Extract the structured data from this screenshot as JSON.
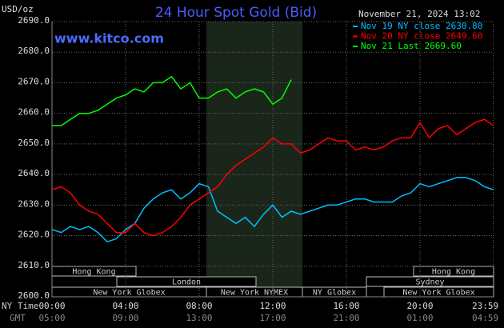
{
  "chart_data": {
    "type": "line",
    "title": "24 Hour Spot Gold (Bid)",
    "website": "www.kitco.com",
    "timestamp": "November 21, 2024 13:02",
    "y_label": "USD/oz",
    "x_label": "NY Time",
    "x2_label": "GMT",
    "x": [
      0,
      0.5,
      1,
      1.5,
      2,
      2.5,
      3,
      3.5,
      4,
      4.5,
      5,
      5.5,
      6,
      6.5,
      7,
      7.5,
      8,
      8.5,
      9,
      9.5,
      10,
      10.5,
      11,
      11.5,
      12,
      12.5,
      13,
      13.5,
      14,
      14.5,
      15,
      15.5,
      16,
      16.5,
      17,
      17.5,
      18,
      18.5,
      19,
      19.5,
      20,
      20.5,
      21,
      21.5,
      22,
      22.5,
      23,
      23.5,
      24
    ],
    "xlim": [
      0,
      24
    ],
    "xticks": [
      {
        "value": 0,
        "label": "00:00"
      },
      {
        "value": 4,
        "label": "04:00"
      },
      {
        "value": 8,
        "label": "08:00"
      },
      {
        "value": 12,
        "label": "12:00"
      },
      {
        "value": 16,
        "label": "16:00"
      },
      {
        "value": 20,
        "label": "20:00"
      },
      {
        "value": 23.983,
        "label": "23:59"
      }
    ],
    "x2ticks": [
      {
        "value": 0,
        "label": "05:00"
      },
      {
        "value": 4,
        "label": "09:00"
      },
      {
        "value": 8,
        "label": "13:00"
      },
      {
        "value": 12,
        "label": "17:00"
      },
      {
        "value": 16,
        "label": "21:00"
      },
      {
        "value": 20,
        "label": "01:00"
      },
      {
        "value": 23.983,
        "label": "04:59"
      }
    ],
    "ylim": [
      2600,
      2690
    ],
    "yticks": [
      {
        "value": 2600,
        "label": "2600.0"
      },
      {
        "value": 2610,
        "label": "2610.0"
      },
      {
        "value": 2620,
        "label": "2620.0"
      },
      {
        "value": 2630,
        "label": "2630.0"
      },
      {
        "value": 2640,
        "label": "2640.0"
      },
      {
        "value": 2650,
        "label": "2650.0"
      },
      {
        "value": 2660,
        "label": "2660.0"
      },
      {
        "value": 2670,
        "label": "2670.0"
      },
      {
        "value": 2680,
        "label": "2680.0"
      },
      {
        "value": 2690,
        "label": "2690.0"
      }
    ],
    "grid": true,
    "series": [
      {
        "name": "Nov 19 NY close 2630.80",
        "color": "#00bfff",
        "values": [
          2622,
          2621,
          2623,
          2622,
          2623,
          2621,
          2618,
          2619,
          2622,
          2624,
          2629,
          2632,
          2634,
          2635,
          2632,
          2634,
          2637,
          2636,
          2628,
          2626,
          2624,
          2626,
          2623,
          2627,
          2630,
          2626,
          2628,
          2627,
          2628,
          2629,
          2630,
          2630,
          2631,
          2632,
          2632,
          2631,
          2631,
          2631,
          2633,
          2634,
          2637,
          2636,
          2637,
          2638,
          2639,
          2639,
          2638,
          2636,
          2635
        ]
      },
      {
        "name": "Nov 20 NY close 2649.60",
        "color": "#ff0000",
        "values": [
          2635,
          2636,
          2634,
          2630,
          2628,
          2627,
          2624,
          2621,
          2621,
          2624,
          2621,
          2620,
          2621,
          2623,
          2626,
          2630,
          2632,
          2634,
          2636,
          2640,
          2643,
          2645,
          2647,
          2649,
          2652,
          2650,
          2650,
          2647,
          2648,
          2650,
          2652,
          2651,
          2651,
          2648,
          2649,
          2648,
          2649,
          2651,
          2652,
          2652,
          2657,
          2652,
          2655,
          2656,
          2653,
          2655,
          2657,
          2658,
          2656
        ]
      },
      {
        "name": "Nov 21 Last 2669.60",
        "color": "#00ff00",
        "values": [
          2656,
          2656,
          2658,
          2660,
          2660,
          2661,
          2663,
          2665,
          2666,
          2668,
          2667,
          2670,
          2670,
          2672,
          2668,
          2670,
          2665,
          2665,
          2667,
          2668,
          2665,
          2667,
          2668,
          2667,
          2663,
          2665,
          2671,
          null,
          null,
          null,
          null,
          null,
          null,
          null,
          null,
          null,
          null,
          null,
          null,
          null,
          null,
          null,
          null,
          null,
          null,
          null,
          null,
          null,
          null
        ]
      }
    ],
    "sessions": [
      "Hong Kong",
      "London",
      "New York Globex",
      "New York NYMEX",
      "NY Globex",
      "Hong Kong",
      "Sydney",
      "New York Globex"
    ]
  }
}
